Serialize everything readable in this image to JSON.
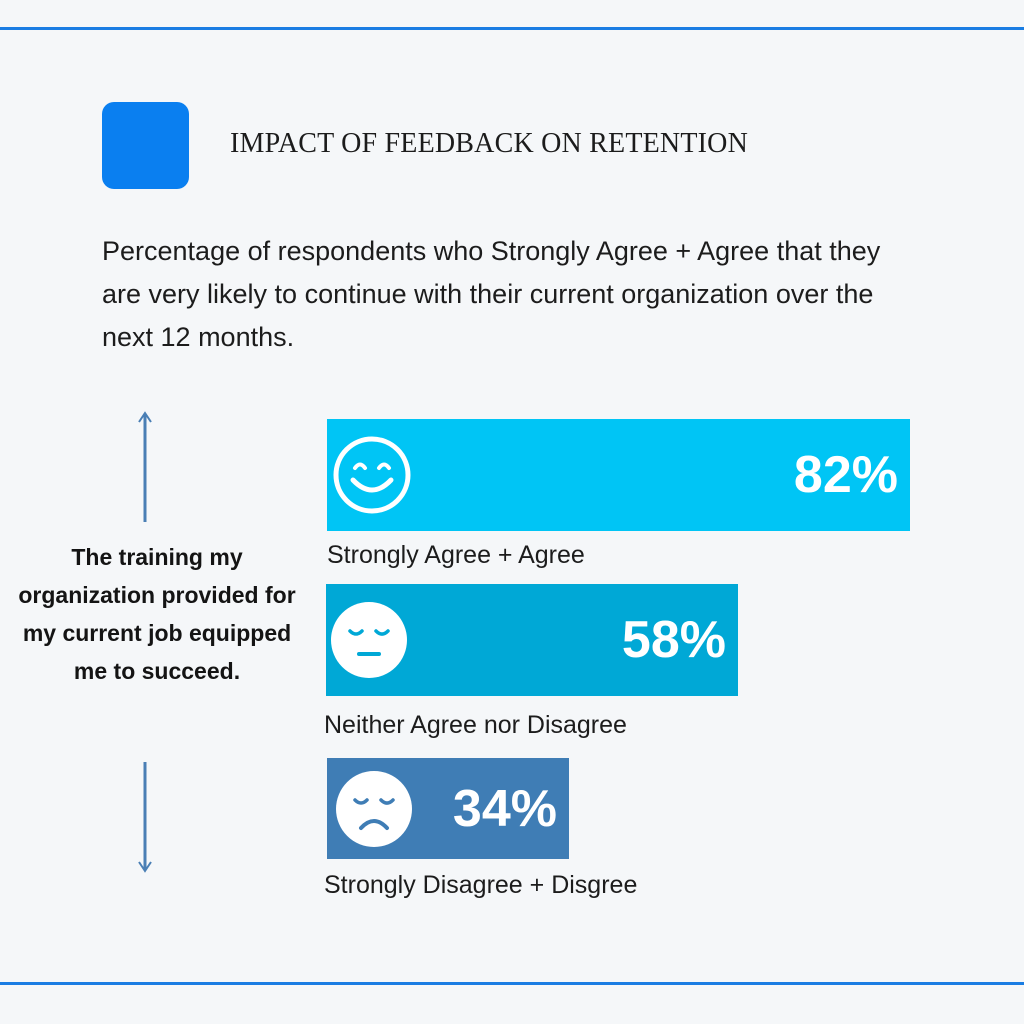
{
  "colors": {
    "accent": "#1a7de3",
    "brand_square": "#0a7ff0",
    "arrow": "#4a7fb5",
    "face": "#ffffff"
  },
  "header": {
    "title": "IMPACT OF FEEDBACK ON RETENTION",
    "subtitle": "Percentage of respondents who Strongly Agree + Agree that they are very likely to continue with their current organization over the next 12 months."
  },
  "side_label": "The training my organization provided for my current job equipped me to succeed.",
  "chart_data": {
    "type": "bar",
    "orientation": "horizontal",
    "title": "IMPACT OF FEEDBACK ON RETENTION",
    "subtitle": "Percentage of respondents who Strongly Agree + Agree that they are very likely to continue with their current organization over the next 12 months.",
    "ylabel": "The training my organization provided for my current job equipped me to succeed.",
    "categories": [
      "Strongly Agree + Agree",
      "Neither Agree nor Disagree",
      "Strongly Disagree + Disgree"
    ],
    "values": [
      82,
      58,
      34
    ],
    "value_labels": [
      "82%",
      "58%",
      "34%"
    ],
    "bar_colors": [
      "#00c5f5",
      "#00a8d6",
      "#3f7db5"
    ],
    "faces": [
      "smile-face-icon",
      "neutral-face-icon",
      "sad-face-icon"
    ],
    "xlim": [
      0,
      100
    ],
    "grid": false
  }
}
